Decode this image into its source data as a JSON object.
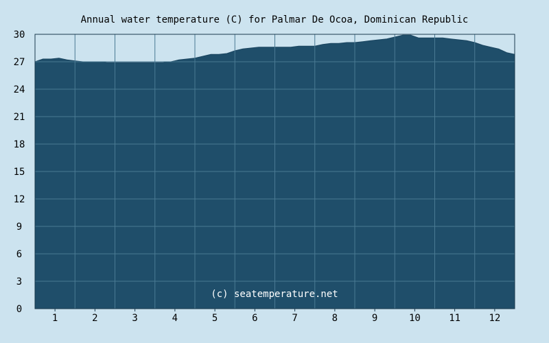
{
  "chart_data": {
    "type": "area",
    "title": "Annual water temperature (C) for Palmar De Ocoa, Dominican Republic",
    "watermark": "(c) seatemperature.net",
    "xlabel": "",
    "ylabel": "",
    "x_categories": [
      "1",
      "2",
      "3",
      "4",
      "5",
      "6",
      "7",
      "8",
      "9",
      "10",
      "11",
      "12"
    ],
    "xlim": [
      0,
      12
    ],
    "ylim": [
      0,
      30
    ],
    "yticks": [
      0,
      3,
      6,
      9,
      12,
      15,
      18,
      21,
      24,
      27,
      30
    ],
    "grid": true,
    "colors": {
      "background": "#cce3ef",
      "plot_background": "#cce3ef",
      "fill": "#1f4e6a",
      "grid": "#4a7a93",
      "axis": "#1a3a4d",
      "watermark": "#ffffff"
    },
    "series": [
      {
        "x": [
          0.0,
          0.2,
          0.4,
          0.6,
          0.8,
          1.0,
          1.2,
          1.4,
          1.6,
          1.8,
          2.0,
          2.2,
          2.4,
          2.6,
          2.8,
          3.0,
          3.2,
          3.4,
          3.6,
          3.8,
          4.0,
          4.2,
          4.4,
          4.6,
          4.8,
          5.0,
          5.2,
          5.4,
          5.6,
          5.8,
          6.0,
          6.2,
          6.4,
          6.6,
          6.8,
          7.0,
          7.2,
          7.4,
          7.6,
          7.8,
          8.0,
          8.2,
          8.4,
          8.6,
          8.8,
          9.0,
          9.2,
          9.4,
          9.6,
          9.8,
          10.0,
          10.2,
          10.4,
          10.6,
          10.8,
          11.0,
          11.2,
          11.4,
          11.6,
          11.8,
          12.0
        ],
        "values": [
          27.0,
          27.3,
          27.3,
          27.4,
          27.2,
          27.1,
          27.0,
          27.0,
          27.0,
          26.9,
          26.9,
          26.9,
          26.9,
          26.9,
          26.9,
          26.9,
          26.9,
          27.0,
          27.2,
          27.3,
          27.4,
          27.6,
          27.8,
          27.8,
          27.9,
          28.2,
          28.4,
          28.5,
          28.6,
          28.6,
          28.6,
          28.6,
          28.6,
          28.7,
          28.7,
          28.7,
          28.9,
          29.0,
          29.0,
          29.1,
          29.1,
          29.2,
          29.3,
          29.4,
          29.5,
          29.7,
          29.9,
          29.9,
          29.6,
          29.6,
          29.6,
          29.6,
          29.5,
          29.4,
          29.3,
          29.1,
          28.8,
          28.6,
          28.4,
          28.0,
          27.8
        ]
      }
    ]
  }
}
